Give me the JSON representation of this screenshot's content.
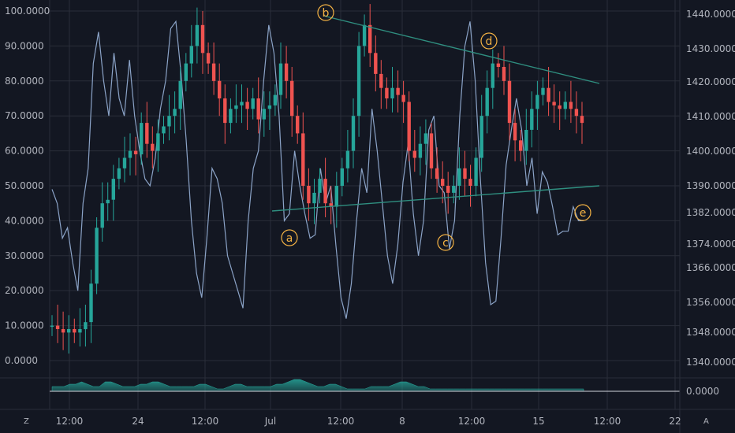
{
  "chart_data": {
    "type": "candlestick",
    "left_axis": {
      "ticks": [
        "100.0000",
        "90.0000",
        "80.0000",
        "70.0000",
        "60.0000",
        "50.0000",
        "40.0000",
        "30.0000",
        "20.0000",
        "10.0000",
        "0.0000"
      ],
      "tick_values": [
        100,
        90,
        80,
        70,
        60,
        50,
        40,
        30,
        20,
        10,
        0
      ]
    },
    "right_axis": {
      "ticks": [
        "1440.0000",
        "1430.0000",
        "1420.0000",
        "1410.0000",
        "1400.0000",
        "1390.0000",
        "1382.0000",
        "1374.0000",
        "1366.0000",
        "1356.0000",
        "1348.0000",
        "1340.0000"
      ],
      "tick_values": [
        1440,
        1430,
        1420,
        1410,
        1400,
        1390,
        1382,
        1374,
        1366,
        1356,
        1348,
        1340
      ]
    },
    "x_axis": {
      "ticks": [
        "12:00",
        "24",
        "12:00",
        "Jul",
        "12:00",
        "8",
        "12:00",
        "15",
        "12:00",
        "22"
      ]
    },
    "oscillator_series": {
      "values": [
        49,
        45,
        35,
        38,
        28,
        20,
        45,
        55,
        85,
        94,
        80,
        70,
        88,
        75,
        70,
        86,
        70,
        60,
        52,
        50,
        58,
        72,
        80,
        95,
        97,
        82,
        63,
        40,
        25,
        18,
        35,
        55,
        52,
        45,
        30,
        25,
        20,
        15,
        40,
        55,
        60,
        80,
        96,
        88,
        70,
        40,
        42,
        60,
        50,
        42,
        35,
        36,
        55,
        45,
        50,
        33,
        18,
        12,
        22,
        40,
        55,
        48,
        72,
        60,
        45,
        30,
        22,
        33,
        51,
        62,
        42,
        30,
        40,
        66,
        70,
        50,
        48,
        32,
        40,
        70,
        90,
        97,
        80,
        52,
        28,
        16,
        17,
        35,
        56,
        66,
        75,
        66,
        50,
        58,
        42,
        54,
        51,
        44,
        36,
        37,
        37,
        44,
        40,
        40
      ]
    },
    "price_series": {
      "values": [
        10,
        9,
        8,
        9,
        8,
        9,
        11,
        22,
        38,
        45,
        46,
        52,
        55,
        58,
        60,
        59,
        68,
        62,
        60,
        65,
        67,
        70,
        72,
        80,
        85,
        90,
        96,
        88,
        85,
        80,
        75,
        68,
        72,
        73,
        74,
        72,
        75,
        69,
        72,
        73,
        76,
        85,
        80,
        70,
        65,
        50,
        45,
        48,
        52,
        45,
        44,
        50,
        55,
        60,
        70,
        90,
        96,
        88,
        82,
        78,
        75,
        78,
        76,
        74,
        60,
        58,
        62,
        65,
        55,
        52,
        50,
        48,
        50,
        55,
        52,
        50,
        58,
        70,
        78,
        85,
        84,
        80,
        68,
        63,
        60,
        66,
        72,
        76,
        78,
        74,
        73,
        72,
        74,
        72,
        70,
        68
      ]
    },
    "histogram_values": [
      2,
      2,
      2,
      3,
      3,
      4,
      3,
      2,
      2,
      4,
      4,
      3,
      2,
      2,
      2,
      3,
      3,
      4,
      4,
      3,
      2,
      2,
      2,
      2,
      2,
      3,
      3,
      2,
      1,
      1,
      2,
      3,
      3,
      2,
      2,
      2,
      2,
      2,
      3,
      3,
      4,
      5,
      5,
      4,
      3,
      2,
      2,
      3,
      3,
      2,
      1,
      1,
      1,
      1,
      2,
      2,
      2,
      2,
      3,
      4,
      4,
      3,
      2,
      2,
      1,
      1,
      1,
      1,
      1,
      1,
      1,
      1,
      1,
      1,
      1,
      1,
      1,
      1,
      1,
      1,
      1,
      1,
      1,
      1,
      1,
      1,
      1,
      1,
      1,
      1,
      1
    ],
    "histogram_axis": {
      "ticks": [
        "0.0000"
      ],
      "tick_values": [
        0
      ]
    },
    "wave_labels": [
      "a",
      "b",
      "c",
      "d",
      "e"
    ]
  },
  "colors": {
    "background": "#131722",
    "grid": "#2a2e39",
    "text": "#b2b5be",
    "bull": "#26a69a",
    "bear": "#ef5350",
    "oscillator": "#8ba3c7",
    "trendline": "#2f8f80",
    "wave_label": "#f5b344",
    "histogram": "#26a69a"
  },
  "bottom_bar": {
    "left_icon": "Z",
    "right_icon": "A"
  }
}
